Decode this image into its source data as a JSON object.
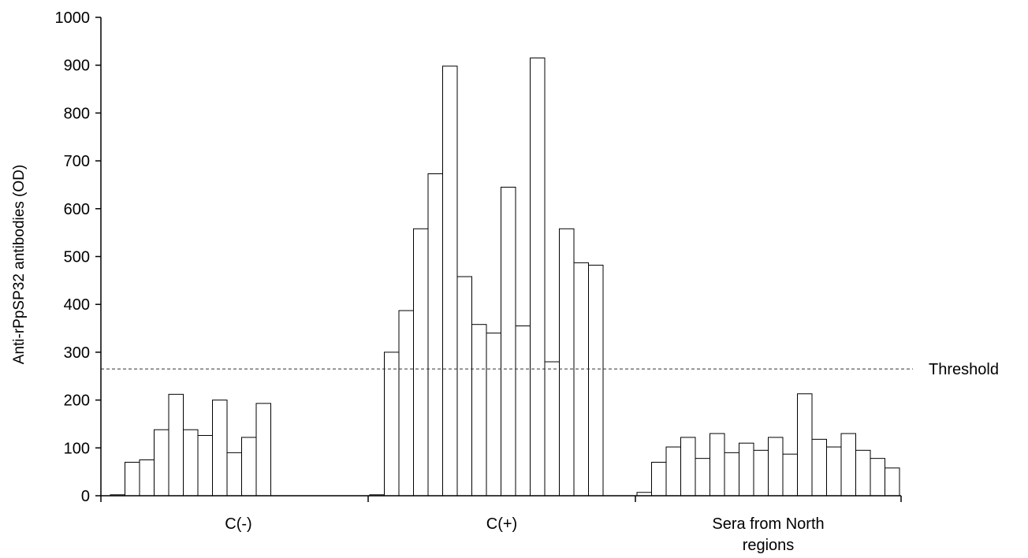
{
  "chart_data": {
    "type": "bar",
    "ylabel": "Anti-rPpSP32 antibodies (OD)",
    "ylim": [
      0,
      1000
    ],
    "yticks": [
      0,
      100,
      200,
      300,
      400,
      500,
      600,
      700,
      800,
      900,
      1000
    ],
    "groups": [
      {
        "name": "C(-)",
        "label_lines": [
          "C(-)"
        ],
        "values": [
          2,
          70,
          75,
          138,
          212,
          138,
          126,
          200,
          90,
          122,
          193
        ]
      },
      {
        "name": "C(+)",
        "label_lines": [
          "C(+)"
        ],
        "values": [
          2,
          300,
          387,
          558,
          673,
          898,
          458,
          358,
          340,
          645,
          355,
          915,
          280,
          558,
          487,
          482
        ]
      },
      {
        "name": "Sera from North regions",
        "label_lines": [
          "Sera from North",
          "regions"
        ],
        "values": [
          7,
          70,
          102,
          122,
          78,
          130,
          90,
          110,
          95,
          122,
          87,
          213,
          118,
          102,
          130,
          95,
          78,
          58
        ]
      }
    ],
    "threshold": {
      "value": 265,
      "label": "Threshold"
    },
    "grid": false,
    "legend": "none"
  }
}
